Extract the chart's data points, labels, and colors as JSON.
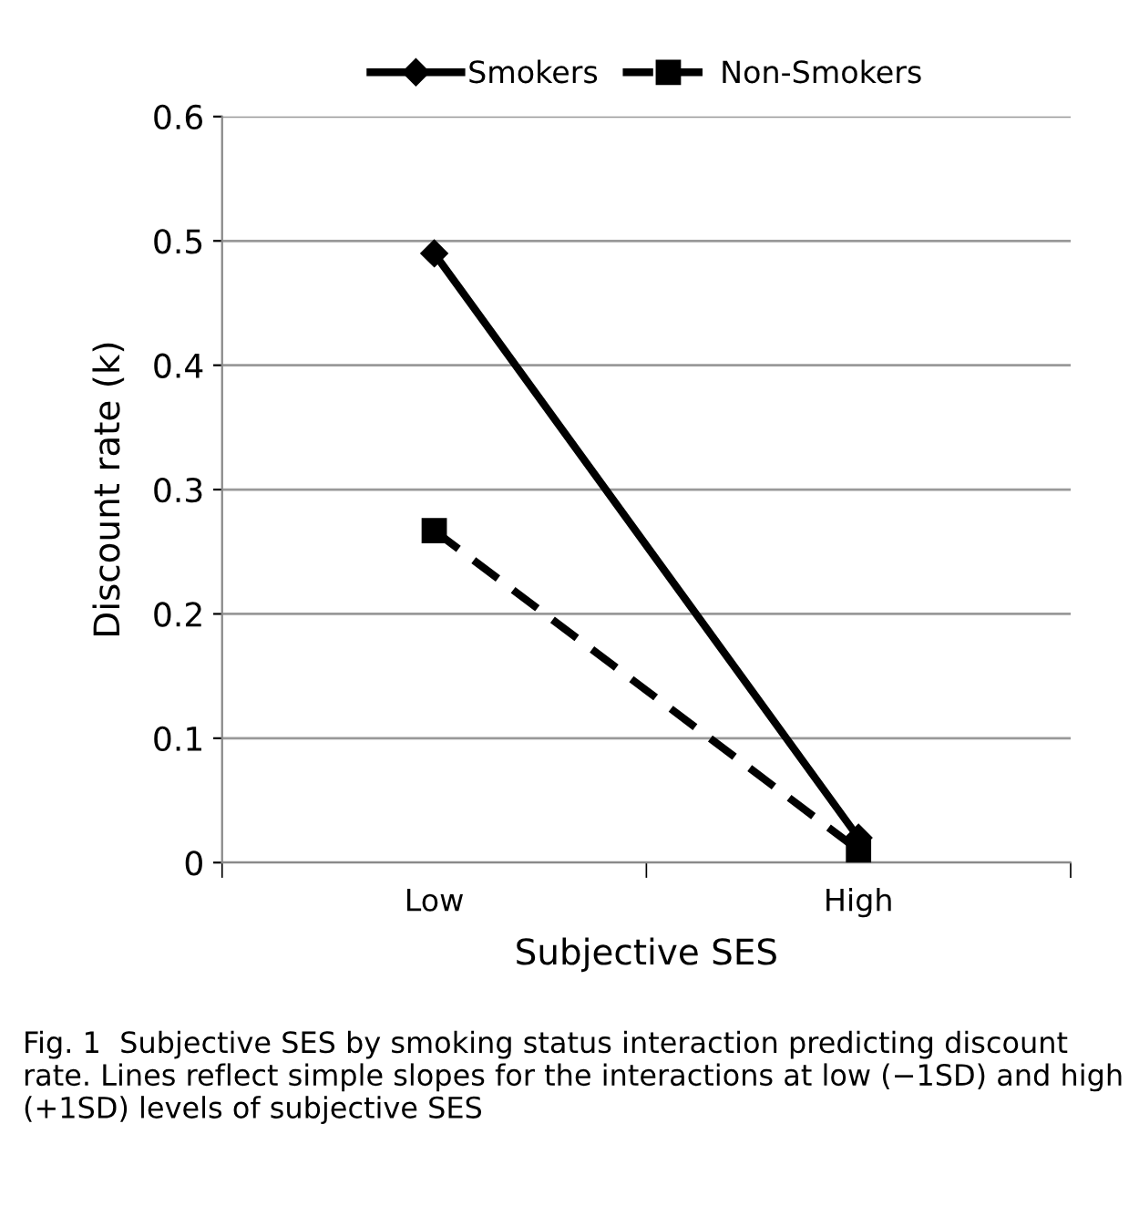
{
  "chart_data": {
    "type": "line",
    "xlabel": "Subjective SES",
    "ylabel": "Discount rate (k)",
    "categories": [
      "Low",
      "High"
    ],
    "series": [
      {
        "name": "Smokers",
        "color": "#000000",
        "values": [
          0.49,
          0.02
        ],
        "marker": "diamond",
        "line_style": "solid"
      },
      {
        "name": "Non-Smokers",
        "color": "#000000",
        "values": [
          0.267,
          0.01
        ],
        "marker": "square",
        "line_style": "dashed"
      }
    ],
    "ylim": [
      0,
      0.6
    ],
    "yticks": [
      {
        "value": 0,
        "label": "0"
      },
      0.1,
      0.2,
      0.3,
      0.4,
      0.5,
      0.6
    ],
    "grid": "y",
    "legend": "top",
    "annotations": [
      "Fig. 1  Subjective SES by smoking status interaction predicting discount rate. Lines reflect simple slopes for the interactions at low (−1SD) and high (+1SD) levels of subjective SES"
    ]
  }
}
